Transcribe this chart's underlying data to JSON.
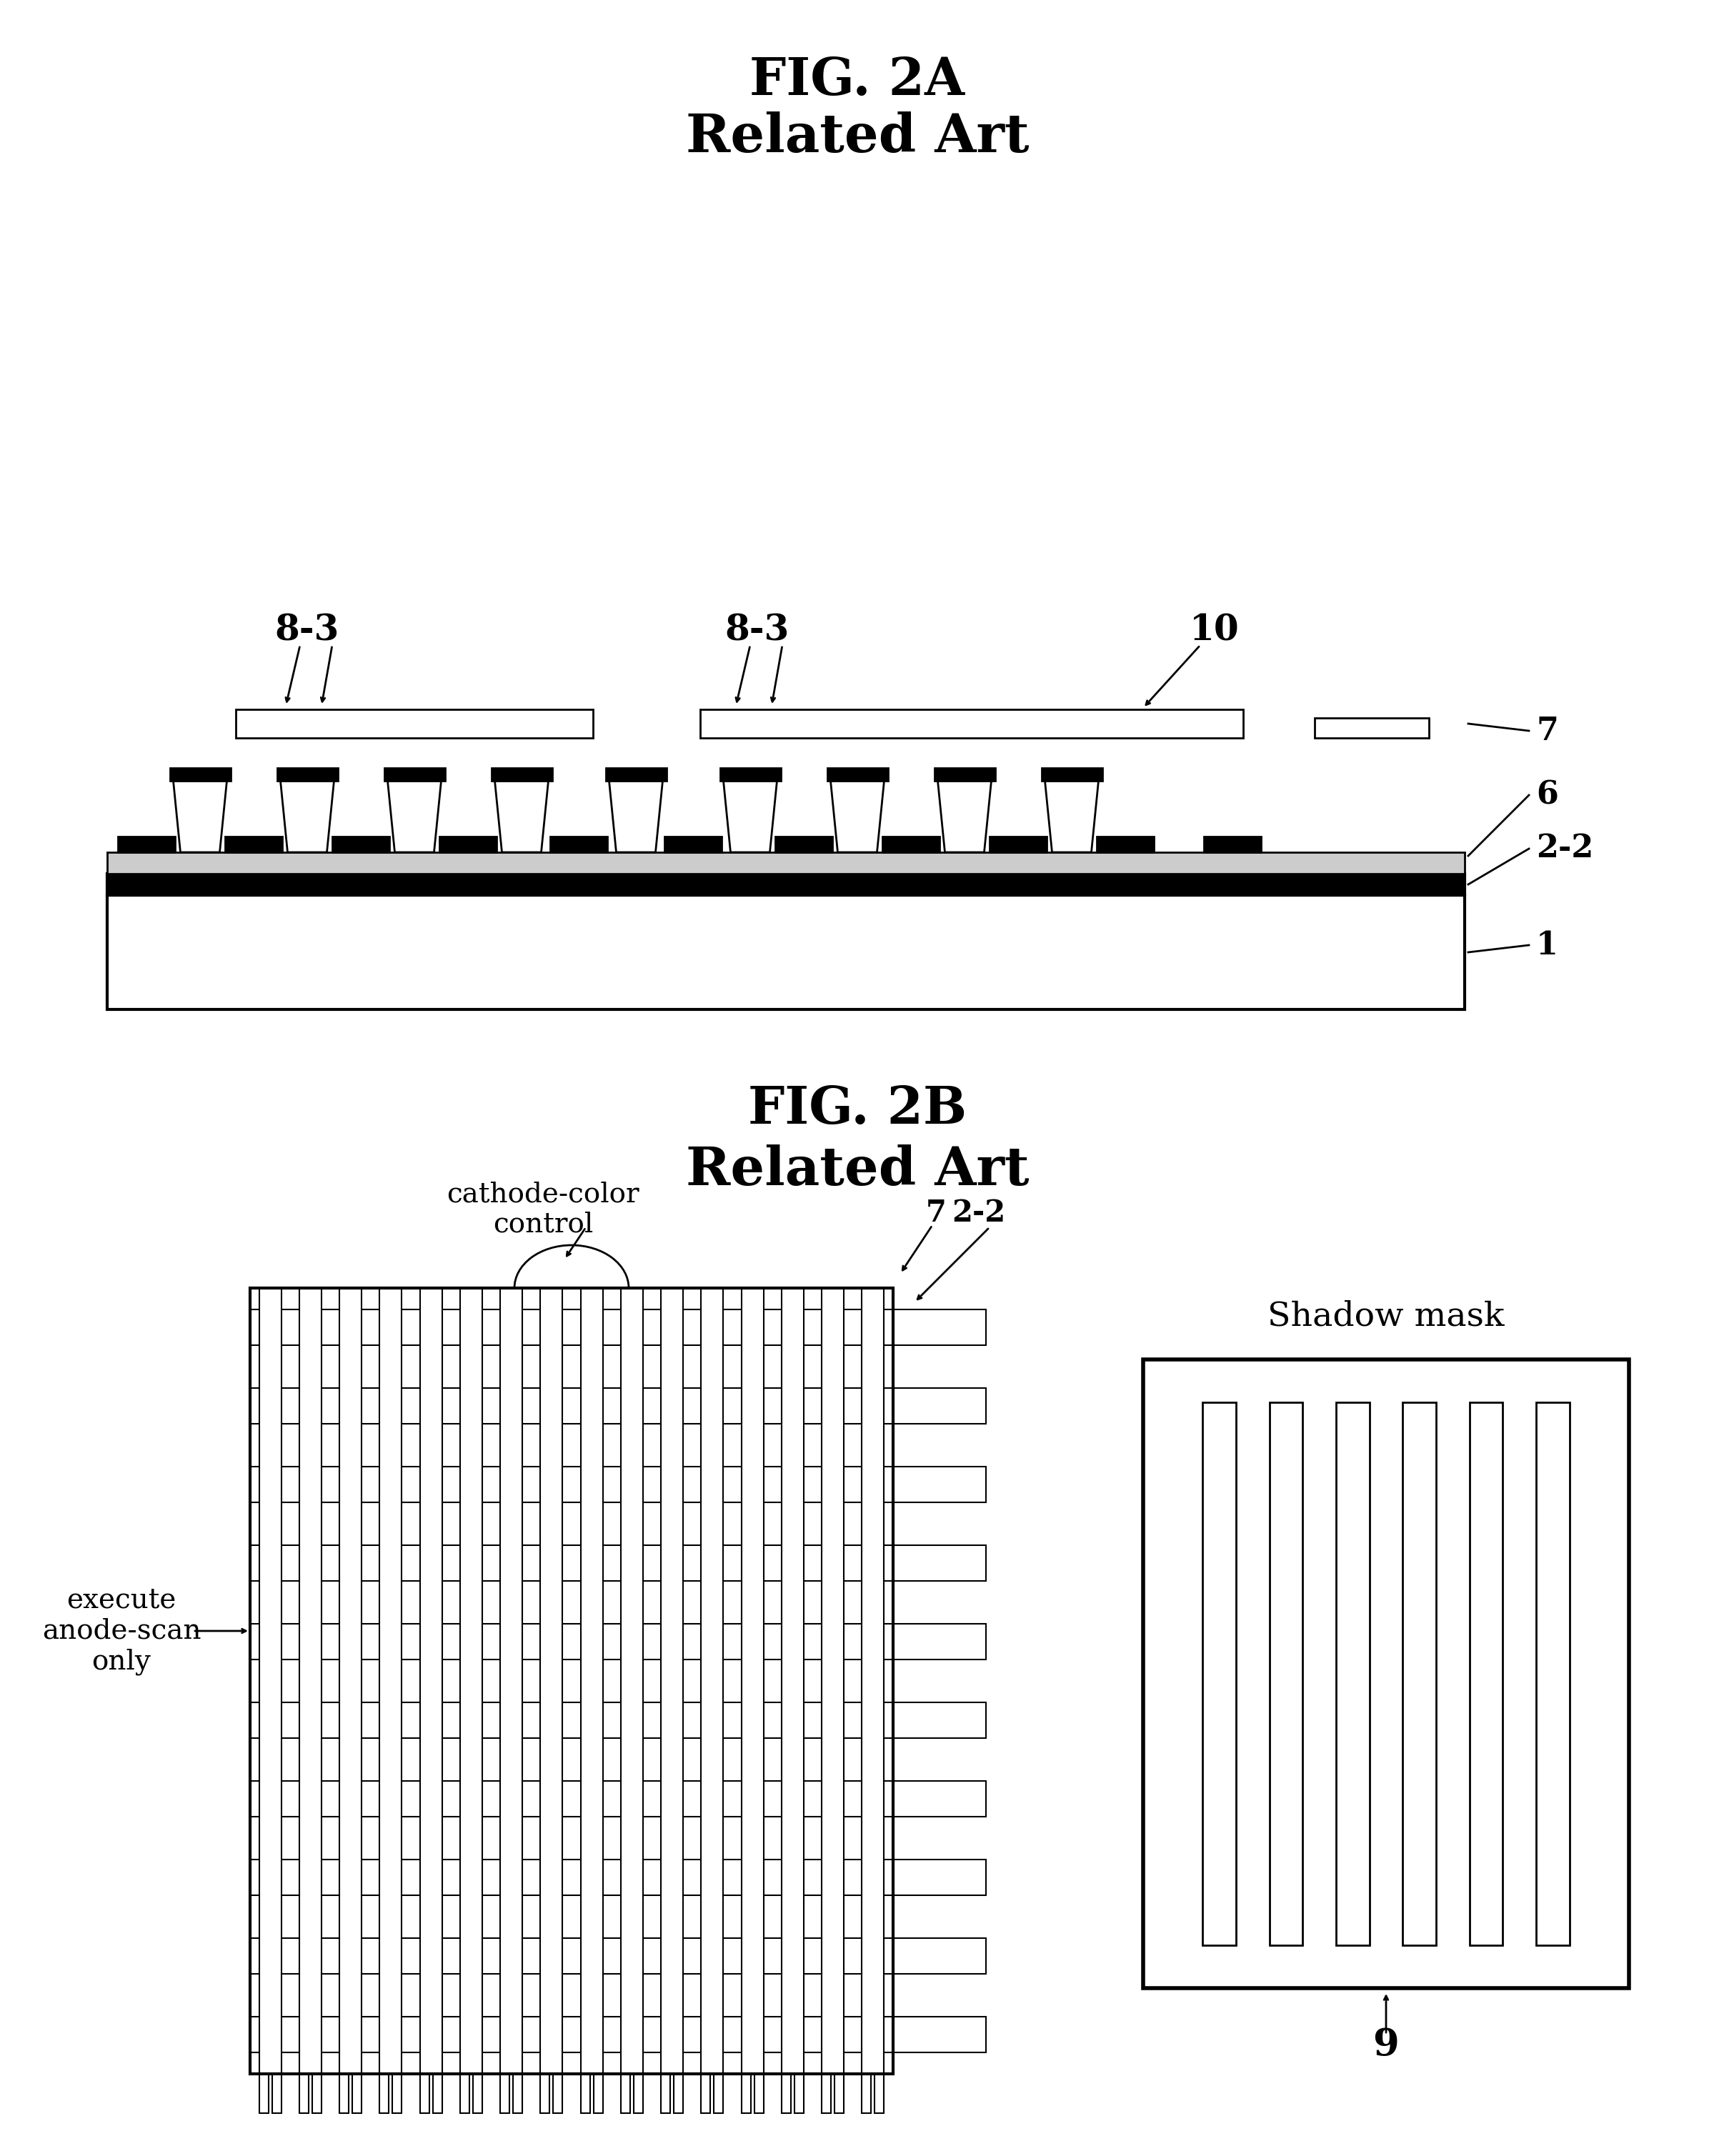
{
  "bg_color": "#ffffff",
  "fig_width": 23.99,
  "fig_height": 29.83,
  "fig2a_title": "FIG. 2A",
  "fig2a_subtitle": "Related Art",
  "fig2b_title": "FIG. 2B",
  "fig2b_subtitle": "Related Art",
  "label_83_1": "8-3",
  "label_83_2": "8-3",
  "label_10": "10",
  "label_7": "7",
  "label_6": "6",
  "label_22": "2-2",
  "label_1": "1",
  "label_cathode": "cathode-color\ncontrol",
  "label_7b": "7",
  "label_22b": "2-2",
  "label_execute": "execute\nanode-scan\nonly",
  "label_shadow": "Shadow mask",
  "label_9": "9"
}
